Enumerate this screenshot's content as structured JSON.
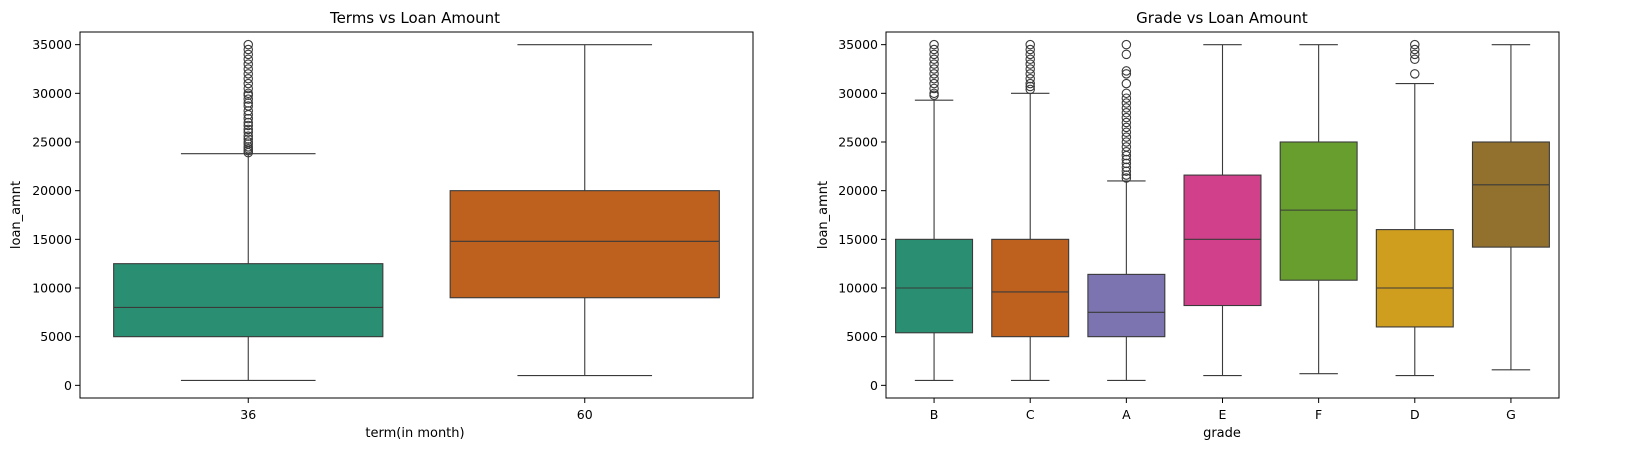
{
  "chart_data": [
    {
      "type": "box",
      "title": "Terms vs Loan Amount",
      "xlabel": "term(in month)",
      "ylabel": "loan_amnt",
      "ylim": [
        -1300,
        36300
      ],
      "yticks": [
        0,
        5000,
        10000,
        15000,
        20000,
        25000,
        30000,
        35000
      ],
      "categories": [
        "36",
        "60"
      ],
      "colors": [
        "#2a8f72",
        "#be611e"
      ],
      "boxes": [
        {
          "category": "36",
          "min": 500,
          "q1": 5000,
          "median": 8000,
          "q3": 12500,
          "max": 23800,
          "outliers": [
            23900,
            24100,
            24300,
            24500,
            24800,
            25000,
            25300,
            25600,
            26000,
            26300,
            26700,
            27000,
            27400,
            27800,
            28200,
            28700,
            29000,
            29400,
            29800,
            30000,
            30500,
            31000,
            31500,
            32000,
            32500,
            33000,
            33500,
            34000,
            34500,
            35000
          ]
        },
        {
          "category": "60",
          "min": 1000,
          "q1": 9000,
          "median": 14800,
          "q3": 20000,
          "max": 35000,
          "outliers": []
        }
      ]
    },
    {
      "type": "box",
      "title": "Grade vs Loan Amount",
      "xlabel": "grade",
      "ylabel": "loan_amnt",
      "ylim": [
        -1300,
        36300
      ],
      "yticks": [
        0,
        5000,
        10000,
        15000,
        20000,
        25000,
        30000,
        35000
      ],
      "categories": [
        "B",
        "C",
        "A",
        "E",
        "F",
        "D",
        "G"
      ],
      "colors": [
        "#2a8f72",
        "#be611e",
        "#7b74b0",
        "#d1418b",
        "#689e2e",
        "#d09e1f",
        "#92702e"
      ],
      "boxes": [
        {
          "category": "B",
          "min": 500,
          "q1": 5400,
          "median": 10000,
          "q3": 15000,
          "max": 29300,
          "outliers": [
            29800,
            30000,
            30500,
            31000,
            31500,
            32000,
            32500,
            33000,
            33500,
            34000,
            34500,
            35000
          ]
        },
        {
          "category": "C",
          "min": 500,
          "q1": 5000,
          "median": 9600,
          "q3": 15000,
          "max": 30000,
          "outliers": [
            30400,
            30700,
            31000,
            31500,
            32000,
            32500,
            33000,
            33500,
            34000,
            34500,
            35000
          ]
        },
        {
          "category": "A",
          "min": 500,
          "q1": 5000,
          "median": 7500,
          "q3": 11400,
          "max": 21000,
          "outliers": [
            21300,
            21600,
            22000,
            22400,
            22800,
            23200,
            23600,
            24000,
            24500,
            25000,
            25500,
            26000,
            26500,
            27000,
            27500,
            28000,
            28500,
            29000,
            29500,
            30000,
            31000,
            32000,
            32300,
            34000,
            35000
          ]
        },
        {
          "category": "E",
          "min": 1000,
          "q1": 8200,
          "median": 15000,
          "q3": 21600,
          "max": 35000,
          "outliers": []
        },
        {
          "category": "F",
          "min": 1200,
          "q1": 10800,
          "median": 18000,
          "q3": 25000,
          "max": 35000,
          "outliers": []
        },
        {
          "category": "D",
          "min": 1000,
          "q1": 6000,
          "median": 10000,
          "q3": 16000,
          "max": 31000,
          "outliers": [
            32000,
            33500,
            34000,
            34500,
            35000
          ]
        },
        {
          "category": "G",
          "min": 1600,
          "q1": 14200,
          "median": 20600,
          "q3": 25000,
          "max": 35000,
          "outliers": []
        }
      ]
    }
  ]
}
